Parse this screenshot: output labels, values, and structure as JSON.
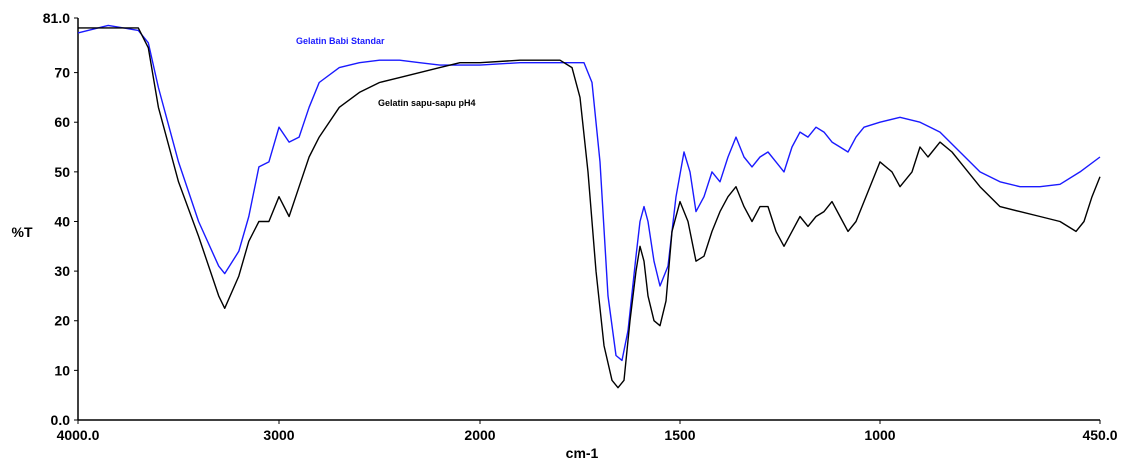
{
  "chart_data": {
    "type": "line",
    "xlabel": "cm-1",
    "ylabel": "%T",
    "x_reversed": true,
    "xlim": [
      4000,
      450
    ],
    "ylim": [
      0,
      81
    ],
    "y_ticks": [
      0,
      10,
      20,
      30,
      40,
      50,
      60,
      70,
      81
    ],
    "y_tick_labels": [
      "0.0",
      "10",
      "20",
      "30",
      "40",
      "50",
      "60",
      "70",
      "81.0"
    ],
    "x_ticks": [
      4000,
      3000,
      2000,
      1500,
      1000,
      450
    ],
    "x_tick_labels": [
      "4000.0",
      "3000",
      "2000",
      "1500",
      "1000",
      "450.0"
    ],
    "grid": false,
    "series": [
      {
        "name": "Gelatin Babi Standar",
        "color": "#1a1aff",
        "points": [
          [
            4000,
            78
          ],
          [
            3850,
            79.5
          ],
          [
            3700,
            78.5
          ],
          [
            3650,
            76
          ],
          [
            3600,
            67
          ],
          [
            3500,
            52
          ],
          [
            3400,
            40
          ],
          [
            3300,
            31
          ],
          [
            3270,
            29.5
          ],
          [
            3200,
            34
          ],
          [
            3150,
            41
          ],
          [
            3100,
            51
          ],
          [
            3050,
            52
          ],
          [
            3000,
            59
          ],
          [
            2950,
            56
          ],
          [
            2900,
            57
          ],
          [
            2850,
            63
          ],
          [
            2800,
            68
          ],
          [
            2700,
            71
          ],
          [
            2600,
            72
          ],
          [
            2500,
            72.5
          ],
          [
            2400,
            72.5
          ],
          [
            2300,
            72
          ],
          [
            2200,
            71.5
          ],
          [
            2100,
            71.5
          ],
          [
            2000,
            71.5
          ],
          [
            1900,
            72
          ],
          [
            1800,
            72
          ],
          [
            1740,
            72
          ],
          [
            1720,
            68
          ],
          [
            1700,
            52
          ],
          [
            1680,
            25
          ],
          [
            1660,
            13
          ],
          [
            1645,
            12
          ],
          [
            1630,
            18
          ],
          [
            1610,
            33
          ],
          [
            1600,
            40
          ],
          [
            1590,
            43
          ],
          [
            1580,
            40
          ],
          [
            1565,
            32
          ],
          [
            1550,
            27
          ],
          [
            1530,
            31
          ],
          [
            1510,
            45
          ],
          [
            1490,
            54
          ],
          [
            1475,
            50
          ],
          [
            1460,
            42
          ],
          [
            1440,
            45
          ],
          [
            1420,
            50
          ],
          [
            1400,
            48
          ],
          [
            1380,
            53
          ],
          [
            1360,
            57
          ],
          [
            1340,
            53
          ],
          [
            1320,
            51
          ],
          [
            1300,
            53
          ],
          [
            1280,
            54
          ],
          [
            1260,
            52
          ],
          [
            1240,
            50
          ],
          [
            1220,
            55
          ],
          [
            1200,
            58
          ],
          [
            1180,
            57
          ],
          [
            1160,
            59
          ],
          [
            1140,
            58
          ],
          [
            1120,
            56
          ],
          [
            1100,
            55
          ],
          [
            1080,
            54
          ],
          [
            1060,
            57
          ],
          [
            1040,
            59
          ],
          [
            1000,
            60
          ],
          [
            950,
            61
          ],
          [
            900,
            60
          ],
          [
            850,
            58
          ],
          [
            800,
            54
          ],
          [
            750,
            50
          ],
          [
            700,
            48
          ],
          [
            650,
            47
          ],
          [
            600,
            47
          ],
          [
            550,
            47.5
          ],
          [
            500,
            50
          ],
          [
            450,
            53
          ]
        ]
      },
      {
        "name": "Gelatin sapu-sapu pH4",
        "color": "#000000",
        "points": [
          [
            4000,
            79
          ],
          [
            3850,
            79
          ],
          [
            3700,
            79
          ],
          [
            3650,
            75
          ],
          [
            3600,
            63
          ],
          [
            3500,
            48
          ],
          [
            3400,
            37
          ],
          [
            3300,
            25
          ],
          [
            3270,
            22.5
          ],
          [
            3200,
            29
          ],
          [
            3150,
            36
          ],
          [
            3100,
            40
          ],
          [
            3050,
            40
          ],
          [
            3000,
            45
          ],
          [
            2950,
            41
          ],
          [
            2900,
            47
          ],
          [
            2850,
            53
          ],
          [
            2800,
            57
          ],
          [
            2700,
            63
          ],
          [
            2600,
            66
          ],
          [
            2500,
            68
          ],
          [
            2400,
            69
          ],
          [
            2300,
            70
          ],
          [
            2200,
            71
          ],
          [
            2100,
            72
          ],
          [
            2000,
            72
          ],
          [
            1900,
            72.5
          ],
          [
            1800,
            72.5
          ],
          [
            1770,
            71
          ],
          [
            1750,
            65
          ],
          [
            1730,
            50
          ],
          [
            1710,
            30
          ],
          [
            1690,
            15
          ],
          [
            1670,
            8
          ],
          [
            1655,
            6.5
          ],
          [
            1640,
            8
          ],
          [
            1625,
            20
          ],
          [
            1610,
            30
          ],
          [
            1600,
            35
          ],
          [
            1590,
            32
          ],
          [
            1580,
            25
          ],
          [
            1565,
            20
          ],
          [
            1550,
            19
          ],
          [
            1535,
            24
          ],
          [
            1520,
            38
          ],
          [
            1500,
            44
          ],
          [
            1480,
            40
          ],
          [
            1460,
            32
          ],
          [
            1440,
            33
          ],
          [
            1420,
            38
          ],
          [
            1400,
            42
          ],
          [
            1380,
            45
          ],
          [
            1360,
            47
          ],
          [
            1340,
            43
          ],
          [
            1320,
            40
          ],
          [
            1300,
            43
          ],
          [
            1280,
            43
          ],
          [
            1260,
            38
          ],
          [
            1240,
            35
          ],
          [
            1220,
            38
          ],
          [
            1200,
            41
          ],
          [
            1180,
            39
          ],
          [
            1160,
            41
          ],
          [
            1140,
            42
          ],
          [
            1120,
            44
          ],
          [
            1100,
            41
          ],
          [
            1080,
            38
          ],
          [
            1060,
            40
          ],
          [
            1040,
            44
          ],
          [
            1000,
            52
          ],
          [
            970,
            50
          ],
          [
            950,
            47
          ],
          [
            920,
            50
          ],
          [
            900,
            55
          ],
          [
            880,
            53
          ],
          [
            850,
            56
          ],
          [
            820,
            54
          ],
          [
            800,
            52
          ],
          [
            750,
            47
          ],
          [
            700,
            43
          ],
          [
            650,
            42
          ],
          [
            600,
            41
          ],
          [
            550,
            40
          ],
          [
            510,
            38
          ],
          [
            490,
            40
          ],
          [
            470,
            45
          ],
          [
            450,
            49
          ]
        ]
      }
    ],
    "annotations": [
      {
        "text": "Gelatin Babi Standar",
        "series": 0
      },
      {
        "text": "Gelatin sapu-sapu pH4",
        "series": 1
      }
    ]
  }
}
